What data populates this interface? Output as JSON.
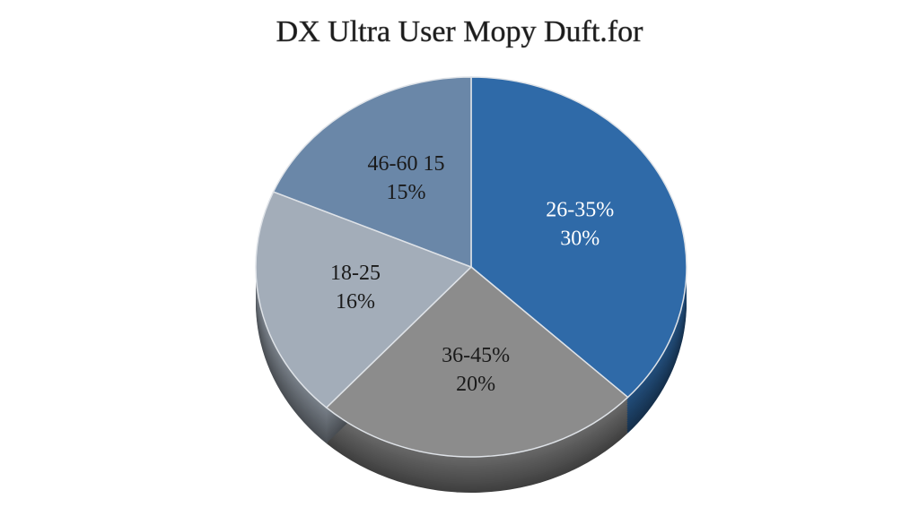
{
  "chart_data": {
    "type": "pie",
    "title": "DX Ultra User Mopy Duft.for",
    "categories": [
      "26-35%",
      "36-45%",
      "18-25",
      "46-60 15"
    ],
    "values": [
      30,
      20,
      16,
      15
    ],
    "value_labels": [
      "30%",
      "20%",
      "16%",
      "15%"
    ],
    "colors": [
      "#2f6aa8",
      "#8c8c8c",
      "#a3adb9",
      "#6a87a8"
    ]
  }
}
